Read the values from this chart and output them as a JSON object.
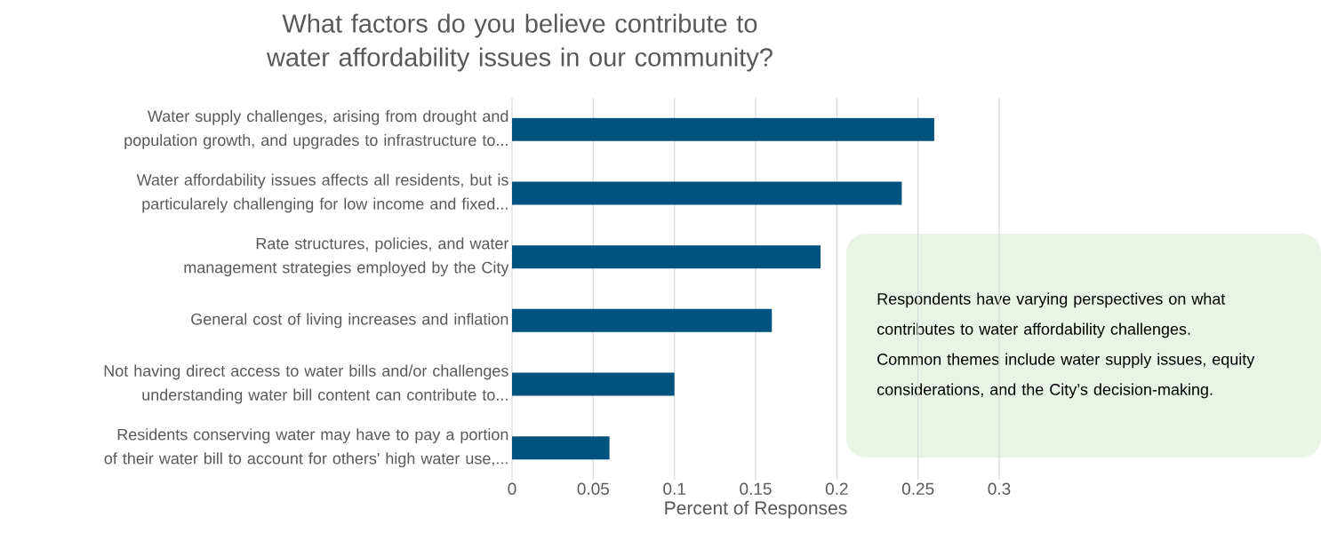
{
  "chart_data": {
    "type": "bar",
    "orientation": "horizontal",
    "title": "What factors do you believe contribute to water affordability issues in our community?",
    "xlabel": "Percent of Responses",
    "categories": [
      "Water supply challenges, arising from drought and population growth, and upgrades to infrastructure to...",
      "Water affordability issues affects all residents, but is particularely  challenging for low income and fixed...",
      "Rate structures, policies, and water management strategies employed by the City",
      "General cost of living increases and inflation",
      "Not having direct access to water bills and/or challenges understanding water bill content can contribute to...",
      "Residents conserving water may have to pay a portion of their water bill to account for others' high water use,..."
    ],
    "values": [
      0.26,
      0.24,
      0.19,
      0.16,
      0.1,
      0.06
    ],
    "color": "#00527f",
    "xlim": [
      0,
      0.3
    ],
    "xticks": [
      0,
      0.05,
      0.1,
      0.15,
      0.2,
      0.25,
      0.3
    ],
    "grid": "x",
    "annotations": [
      "Respondents have varying perspectives on what contributes to water affordability challenges. Common themes include water supply issues, equity considerations, and the City’s decision-making."
    ]
  }
}
